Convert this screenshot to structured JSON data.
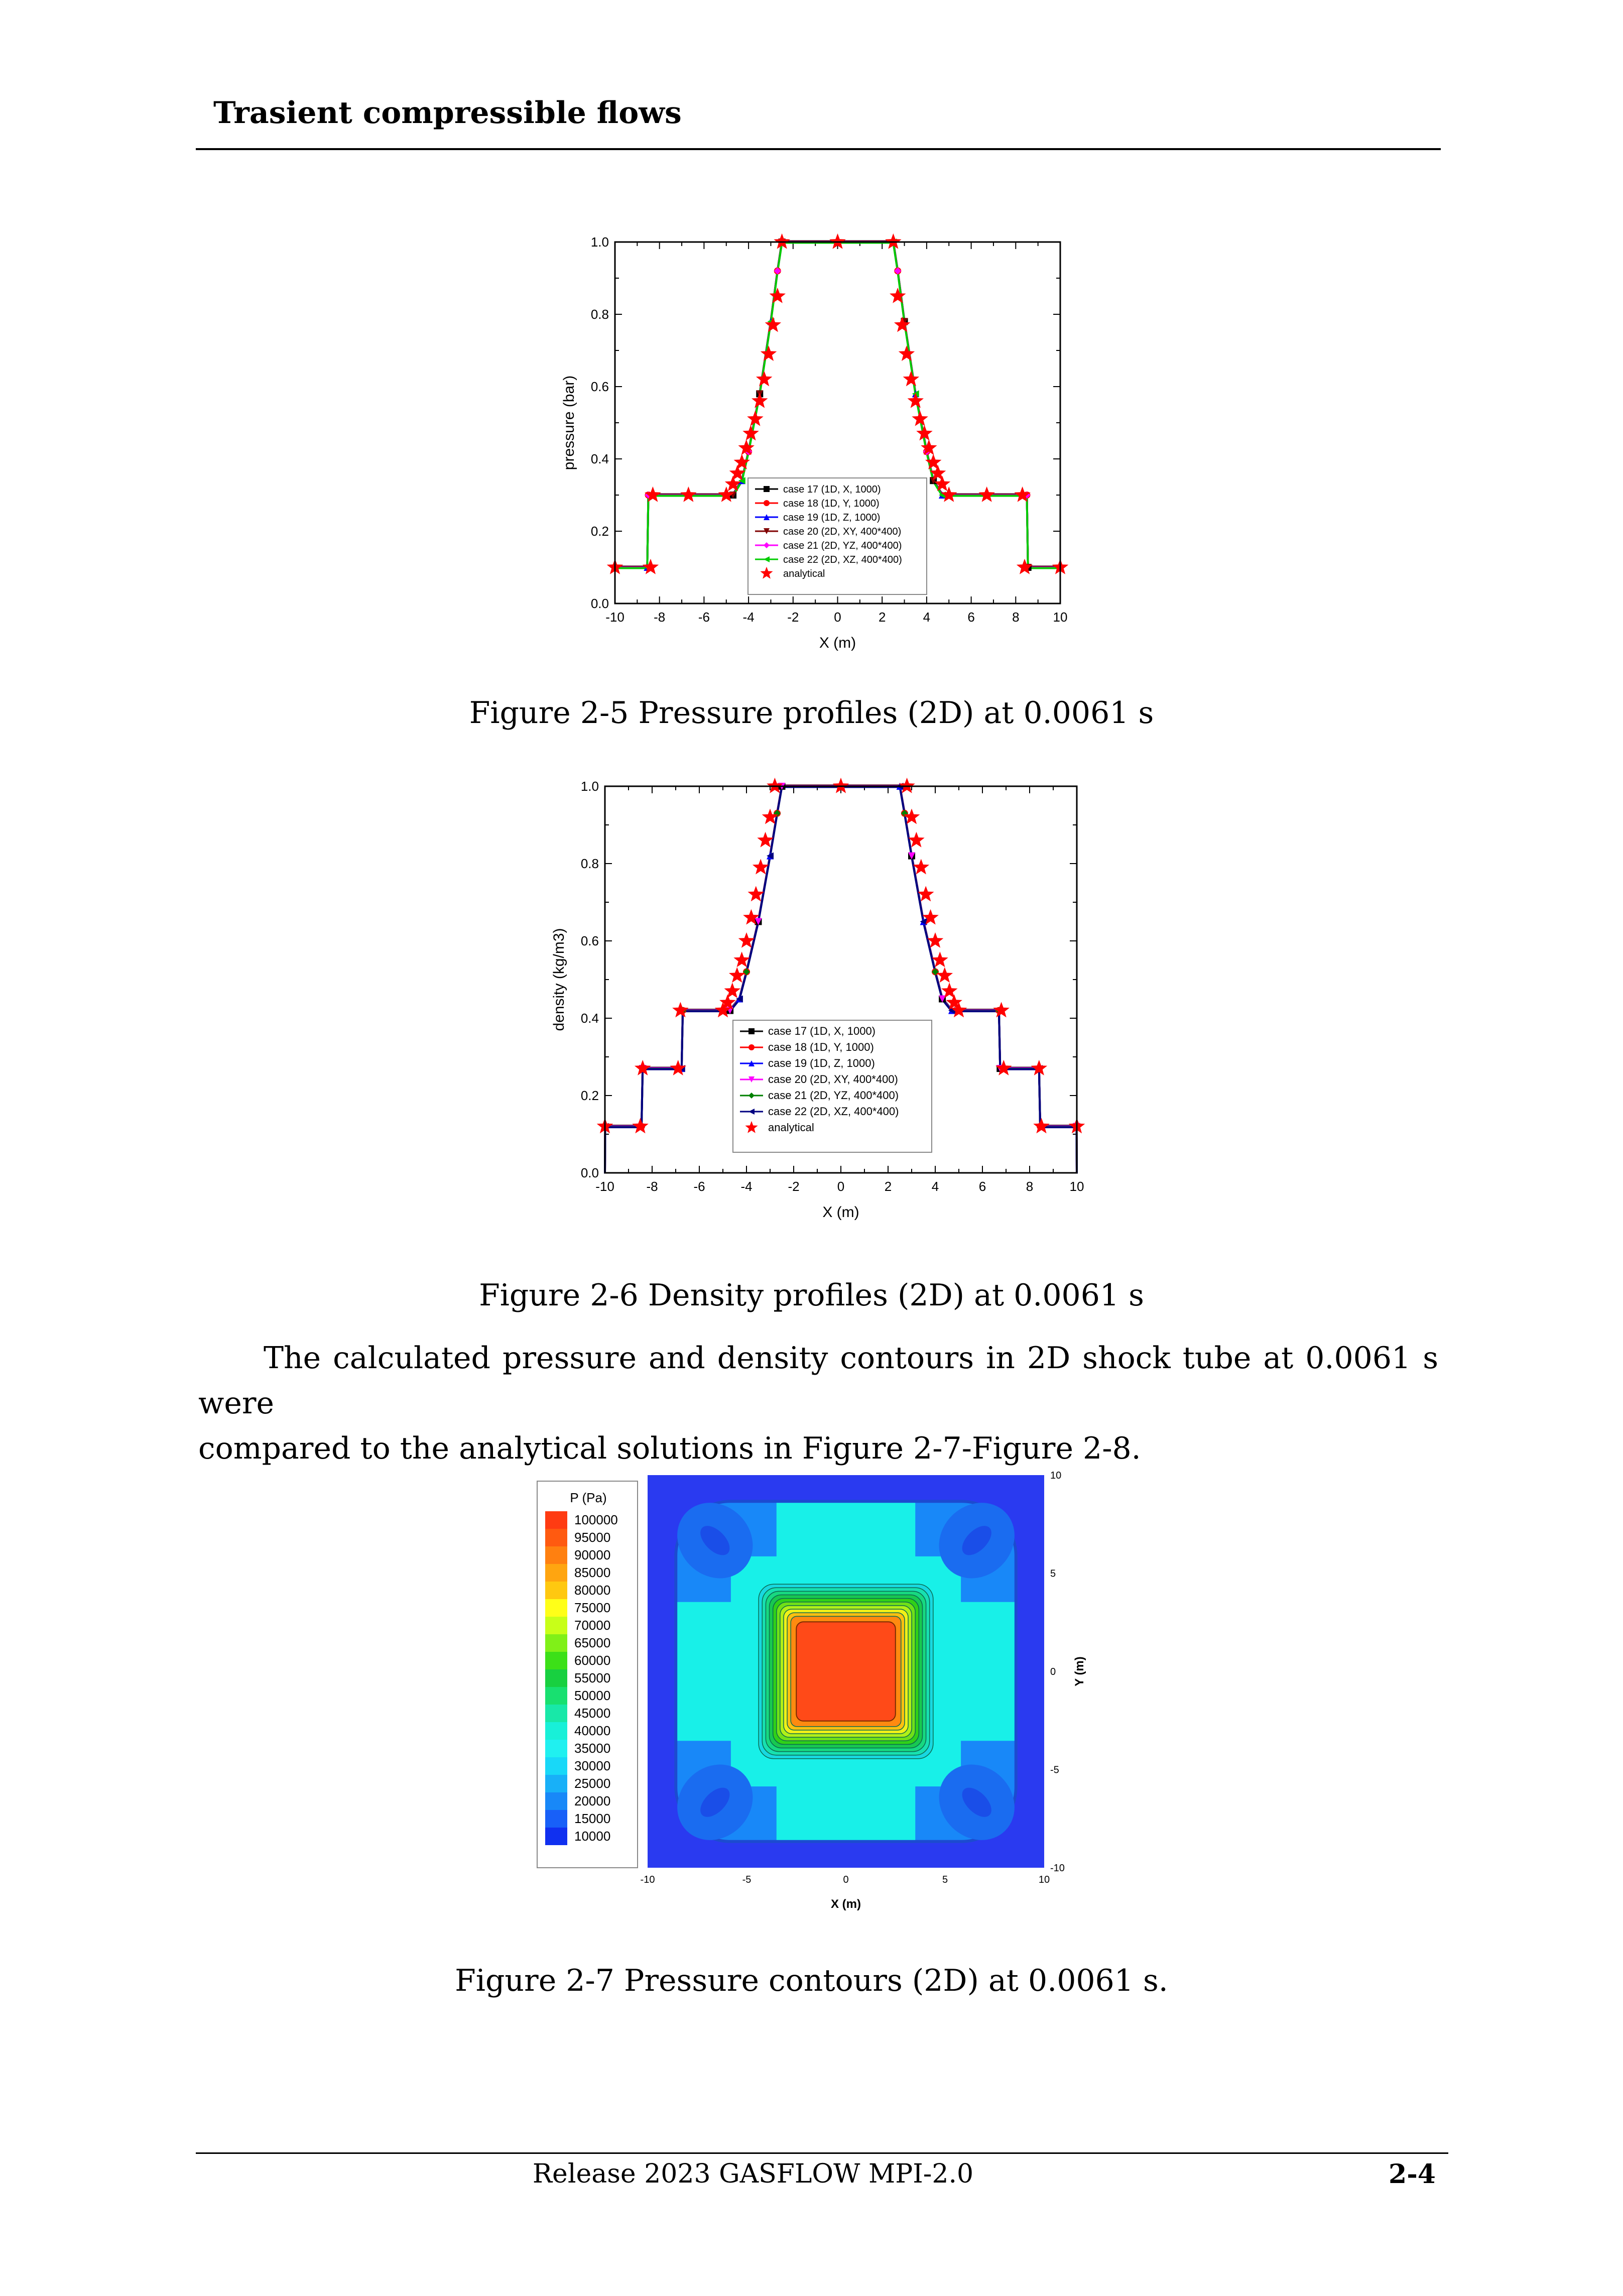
{
  "header": {
    "title": "Trasient compressible flows"
  },
  "figures": {
    "fig25_caption": "Figure 2-5 Pressure profiles (2D) at 0.0061 s",
    "fig26_caption": "Figure 2-6 Density profiles (2D) at 0.0061 s",
    "fig27_caption": "Figure 2-7 Pressure contours (2D) at 0.0061 s."
  },
  "body": {
    "para_line1": "The calculated pressure and density contours in 2D shock tube at 0.0061 s were",
    "para_line2": "compared to the analytical solutions in Figure 2-7-Figure 2-8."
  },
  "footer": {
    "text": "Release 2023 GASFLOW MPI-2.0",
    "page": "2-4"
  },
  "chart_data": [
    {
      "type": "line",
      "xlabel": "X (m)",
      "ylabel": "pressure (bar)",
      "xlim": [
        -10,
        10
      ],
      "ylim": [
        0.0,
        1.0
      ],
      "xticks": [
        "-10",
        "-8",
        "-6",
        "-4",
        "-2",
        "0",
        "2",
        "4",
        "6",
        "8",
        "10"
      ],
      "yticks": [
        "0.0",
        "0.2",
        "0.4",
        "0.6",
        "0.8",
        "1.0"
      ],
      "legend_position": "bottom-center",
      "series": [
        {
          "name": "case 17 (1D, X, 1000)",
          "color": "#000000",
          "marker": "square"
        },
        {
          "name": "case 18 (1D, Y, 1000)",
          "color": "#ff0000",
          "marker": "circle"
        },
        {
          "name": "case 19 (1D, Z, 1000)",
          "color": "#0000ff",
          "marker": "triangle-up"
        },
        {
          "name": "case 20 (2D, XY, 400*400)",
          "color": "#800000",
          "marker": "triangle-down"
        },
        {
          "name": "case 21 (2D, YZ, 400*400)",
          "color": "#ff00ff",
          "marker": "diamond"
        },
        {
          "name": "case 22 (2D, XZ, 400*400)",
          "color": "#00cc00",
          "marker": "triangle-left"
        },
        {
          "name": "analytical",
          "color": "#ff0000",
          "marker": "star"
        }
      ],
      "profile_x": [
        -10,
        -8.55,
        -8.5,
        -4.7,
        -4.3,
        -4.0,
        -3.5,
        -3.0,
        -2.7,
        -2.5,
        2.5,
        2.7,
        3.0,
        3.5,
        4.0,
        4.3,
        4.7,
        8.5,
        8.55,
        10
      ],
      "profile_y": [
        0.1,
        0.1,
        0.3,
        0.3,
        0.34,
        0.42,
        0.58,
        0.78,
        0.92,
        1.0,
        1.0,
        0.92,
        0.78,
        0.58,
        0.42,
        0.34,
        0.3,
        0.3,
        0.1,
        0.1
      ],
      "analytical_x": [
        -10,
        -8.4,
        -8.3,
        -6.7,
        -5,
        -4.7,
        -4.5,
        -4.3,
        -4.1,
        -3.9,
        -3.7,
        -3.5,
        -3.3,
        -3.1,
        -2.9,
        -2.7,
        -2.5,
        0,
        2.5,
        2.7,
        2.9,
        3.1,
        3.3,
        3.5,
        3.7,
        3.9,
        4.1,
        4.3,
        4.5,
        4.7,
        5,
        6.7,
        8.3,
        8.4,
        10
      ],
      "analytical_y": [
        0.1,
        0.1,
        0.3,
        0.3,
        0.3,
        0.33,
        0.36,
        0.39,
        0.43,
        0.47,
        0.51,
        0.56,
        0.62,
        0.69,
        0.77,
        0.85,
        1.0,
        1.0,
        1.0,
        0.85,
        0.77,
        0.69,
        0.62,
        0.56,
        0.51,
        0.47,
        0.43,
        0.39,
        0.36,
        0.33,
        0.3,
        0.3,
        0.3,
        0.1,
        0.1
      ]
    },
    {
      "type": "line",
      "xlabel": "X (m)",
      "ylabel": "density (kg/m3)",
      "xlim": [
        -10,
        10
      ],
      "ylim": [
        0.0,
        1.0
      ],
      "xticks": [
        "-10",
        "-8",
        "-6",
        "-4",
        "-2",
        "0",
        "2",
        "4",
        "6",
        "8",
        "10"
      ],
      "yticks": [
        "0.0",
        "0.2",
        "0.4",
        "0.6",
        "0.8",
        "1.0"
      ],
      "legend_position": "bottom-center",
      "series": [
        {
          "name": "case 17 (1D, X, 1000)",
          "color": "#000000",
          "marker": "square"
        },
        {
          "name": "case 18 (1D, Y, 1000)",
          "color": "#ff0000",
          "marker": "circle"
        },
        {
          "name": "case 19 (1D, Z, 1000)",
          "color": "#0000ff",
          "marker": "triangle-up"
        },
        {
          "name": "case 20 (2D, XY, 400*400)",
          "color": "#ff00ff",
          "marker": "triangle-down"
        },
        {
          "name": "case 21 (2D, YZ, 400*400)",
          "color": "#008000",
          "marker": "diamond"
        },
        {
          "name": "case 22 (2D, XZ, 400*400)",
          "color": "#000080",
          "marker": "triangle-left"
        },
        {
          "name": "analytical",
          "color": "#ff0000",
          "marker": "star"
        }
      ],
      "profile_x": [
        -10,
        -9.99,
        -8.45,
        -8.4,
        -6.75,
        -6.7,
        -4.7,
        -4.3,
        -4.0,
        -3.5,
        -3.0,
        -2.7,
        -2.5,
        2.5,
        2.7,
        3.0,
        3.5,
        4.0,
        4.3,
        4.7,
        6.7,
        6.75,
        8.4,
        8.45,
        9.99,
        10
      ],
      "profile_y": [
        0.0,
        0.12,
        0.12,
        0.27,
        0.27,
        0.42,
        0.42,
        0.45,
        0.52,
        0.65,
        0.82,
        0.93,
        1.0,
        1.0,
        0.93,
        0.82,
        0.65,
        0.52,
        0.45,
        0.42,
        0.42,
        0.27,
        0.27,
        0.12,
        0.12,
        0.0
      ],
      "analytical_x": [
        -10,
        -8.5,
        -8.4,
        -6.9,
        -6.8,
        -5,
        -4.8,
        -4.6,
        -4.4,
        -4.2,
        -4.0,
        -3.8,
        -3.6,
        -3.4,
        -3.2,
        -3.0,
        -2.8,
        0,
        2.8,
        3.0,
        3.2,
        3.4,
        3.6,
        3.8,
        4.0,
        4.2,
        4.4,
        4.6,
        4.8,
        5,
        6.8,
        6.9,
        8.4,
        8.5,
        10
      ],
      "analytical_y": [
        0.12,
        0.12,
        0.27,
        0.27,
        0.42,
        0.42,
        0.44,
        0.47,
        0.51,
        0.55,
        0.6,
        0.66,
        0.72,
        0.79,
        0.86,
        0.92,
        1.0,
        1.0,
        1.0,
        0.92,
        0.86,
        0.79,
        0.72,
        0.66,
        0.6,
        0.55,
        0.51,
        0.47,
        0.44,
        0.42,
        0.42,
        0.27,
        0.27,
        0.12,
        0.12
      ]
    },
    {
      "type": "heatmap",
      "colorbar_title": "P (Pa)",
      "colorbar_labels": [
        "100000",
        "95000",
        "90000",
        "85000",
        "80000",
        "75000",
        "70000",
        "65000",
        "60000",
        "55000",
        "50000",
        "45000",
        "40000",
        "35000",
        "30000",
        "25000",
        "20000",
        "15000",
        "10000"
      ],
      "colorbar_colors": [
        "#ff3b12",
        "#ff5a10",
        "#ff8010",
        "#ffa510",
        "#ffc810",
        "#ffff18",
        "#c8ff18",
        "#80f018",
        "#3ce018",
        "#18d040",
        "#18e070",
        "#18e8a8",
        "#18f0d8",
        "#20f0f0",
        "#18d8f8",
        "#18b0f8",
        "#1888f8",
        "#1860f8",
        "#1030f0"
      ],
      "xlabel": "X (m)",
      "ylabel": "Y (m)",
      "xlim": [
        -10,
        10
      ],
      "ylim": [
        -10,
        10
      ],
      "xticks": [
        "-10",
        "-5",
        "0",
        "5",
        "10"
      ],
      "yticks": [
        "10",
        "5",
        "0",
        "-5",
        "-10"
      ],
      "regions": {
        "outer": "#2a3af0",
        "ring": "#1888f8",
        "mid": "#18f0e8",
        "lobes": "#1a6cf0",
        "lobe_core": "#1a4ee8",
        "core": "#ff4a18"
      }
    }
  ]
}
